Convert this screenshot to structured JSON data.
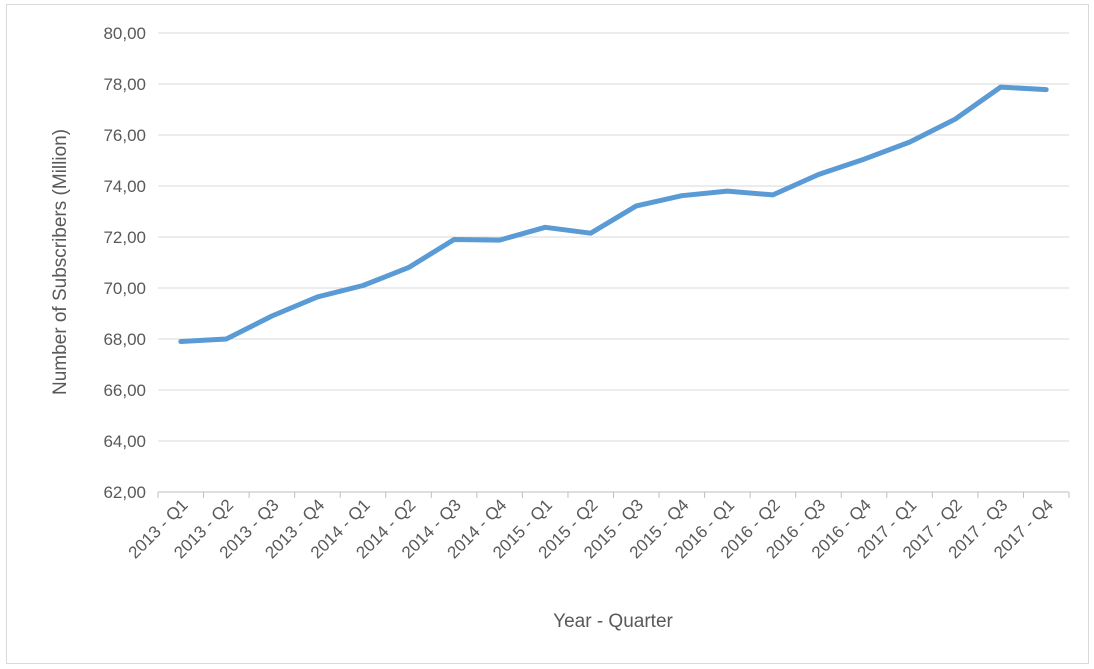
{
  "chart_data": {
    "type": "line",
    "title": "",
    "xlabel": "Year  - Quarter",
    "ylabel": "Number of Subscribers (Million)",
    "ylim": [
      62,
      80
    ],
    "ytick_step": 2,
    "ytick_labels": [
      "62,00",
      "64,00",
      "66,00",
      "68,00",
      "70,00",
      "72,00",
      "74,00",
      "76,00",
      "78,00",
      "80,00"
    ],
    "grid": true,
    "legend": "none",
    "categories": [
      "2013 - Q1",
      "2013 - Q2",
      "2013 - Q3",
      "2013 - Q4",
      "2014 - Q1",
      "2014 - Q2",
      "2014 - Q3",
      "2014 - Q4",
      "2015 - Q1",
      "2015 - Q2",
      "2015 - Q3",
      "2015 - Q4",
      "2016 - Q1",
      "2016 - Q2",
      "2016 - Q3",
      "2016 - Q4",
      "2017 - Q1",
      "2017 - Q2",
      "2017 - Q3",
      "2017 - Q4"
    ],
    "series": [
      {
        "color": "#5b9bd5",
        "values": [
          67.9,
          68.0,
          68.9,
          69.65,
          70.1,
          70.8,
          71.9,
          71.88,
          72.38,
          72.15,
          73.22,
          73.62,
          73.8,
          73.65,
          74.45,
          75.05,
          75.72,
          76.62,
          77.88,
          77.78
        ]
      }
    ]
  }
}
